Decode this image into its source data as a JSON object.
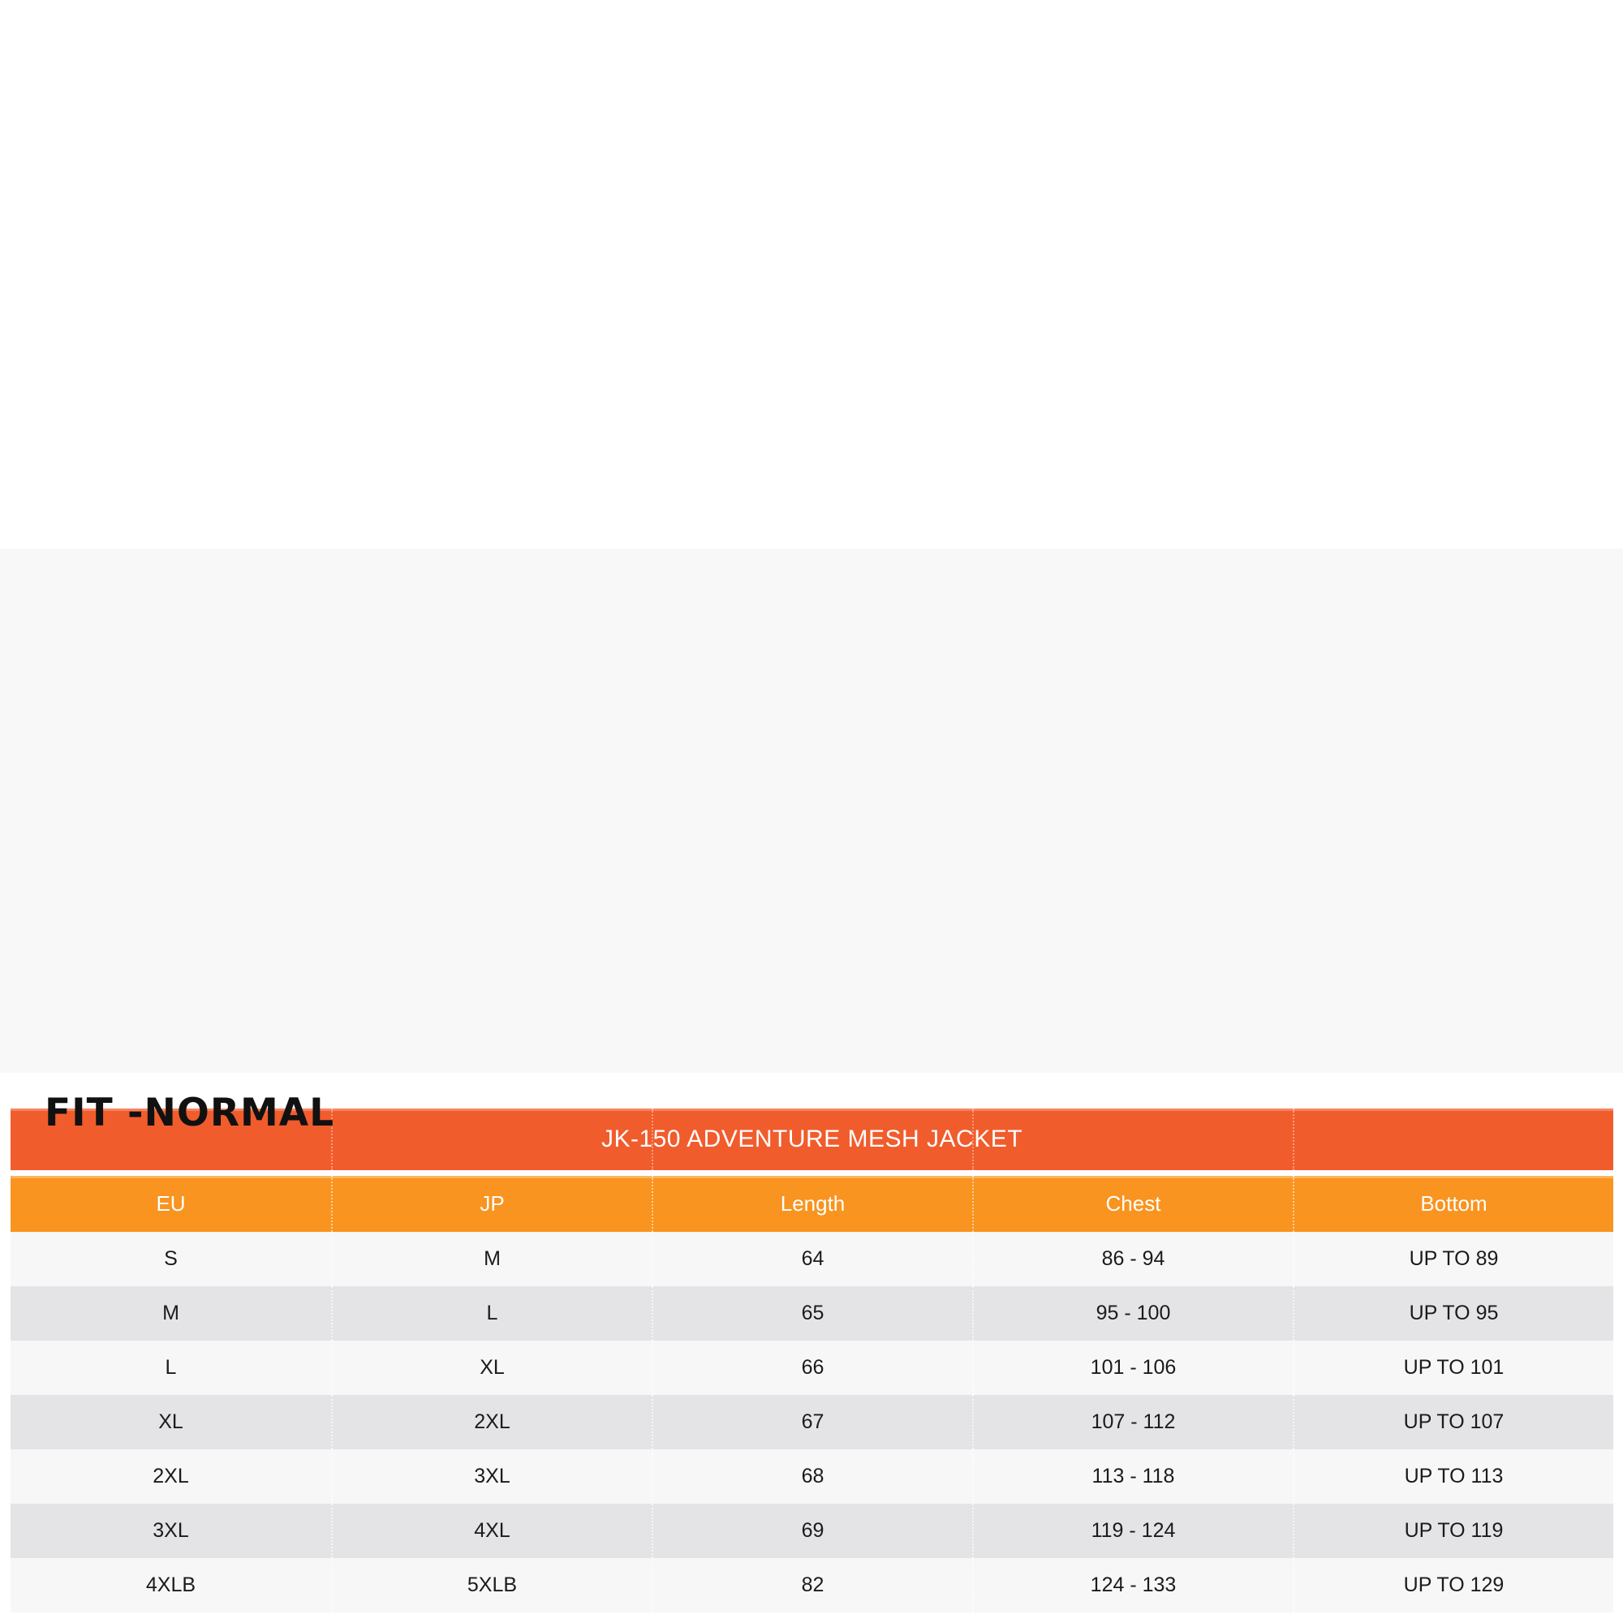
{
  "size_chart": {
    "title": "JK-150 ADVENTURE MESH JACKET",
    "columns": [
      "EU",
      "JP",
      "Length",
      "Chest",
      "Bottom"
    ],
    "rows": [
      [
        "S",
        "M",
        "64",
        "86 - 94",
        "UP TO 89"
      ],
      [
        "M",
        "L",
        "65",
        "95 - 100",
        "UP TO 95"
      ],
      [
        "L",
        "XL",
        "66",
        "101 - 106",
        "UP TO 101"
      ],
      [
        "XL",
        "2XL",
        "67",
        "107 - 112",
        "UP TO 107"
      ],
      [
        "2XL",
        "3XL",
        "68",
        "113 - 118",
        "UP TO 113"
      ],
      [
        "3XL",
        "4XL",
        "69",
        "119 - 124",
        "UP TO 119"
      ],
      [
        "4XLB",
        "5XLB",
        "82",
        "124 - 133",
        "UP TO 129"
      ]
    ],
    "colors": {
      "title_bar": "#f15c2c",
      "header_bar": "#f8941f",
      "row_light": "#f7f7f7",
      "row_dark": "#e4e4e6",
      "band_background": "#f8f8f8",
      "header_text": "#ffffff",
      "cell_text": "#1b1b1b"
    }
  },
  "fit_note": "FIT -NORMAL"
}
